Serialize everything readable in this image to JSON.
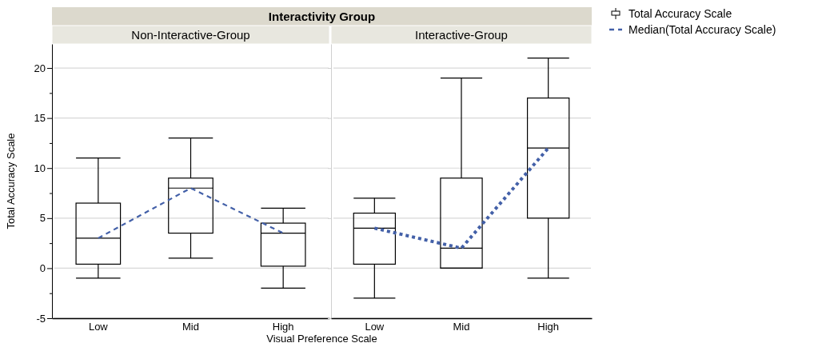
{
  "chart_data": [
    {
      "type": "box",
      "title": "Interactivity Group",
      "subtitle": "Non-Interactive-Group",
      "xlabel": "Visual Preference Scale",
      "ylabel": "Total Accuracy Scale",
      "categories": [
        "Low",
        "Mid",
        "High"
      ],
      "ylim": [
        -5,
        22.4
      ],
      "yticks": [
        -5,
        {
          "value": -2.5,
          "label": null
        },
        0,
        {
          "value": 2.5,
          "label": null
        },
        5,
        {
          "value": 7.5,
          "label": null
        },
        10,
        {
          "value": 12.5,
          "label": null
        },
        15,
        {
          "value": 17.5,
          "label": null
        },
        20
      ],
      "grid": "y",
      "legend": "top right",
      "marker": "none",
      "series": [
        {
          "name": "Total Accuracy Scale",
          "color": "#000000",
          "boxes": [
            {
              "low": -1,
              "q1": 0.4,
              "median": 3,
              "q3": 6.5,
              "high": 11
            },
            {
              "low": 1,
              "q1": 3.5,
              "median": 8,
              "q3": 9,
              "high": 13
            },
            {
              "low": -2,
              "q1": 0.2,
              "median": 3.5,
              "q3": 4.5,
              "high": 6
            }
          ]
        },
        {
          "name": "Median(Total Accuracy Scale)",
          "type": "line",
          "color": "#4360a8",
          "line_style": "dashed",
          "values": [
            3,
            8,
            3.5
          ]
        }
      ]
    },
    {
      "type": "box",
      "subtitle": "Interactive-Group",
      "categories": [
        "Low",
        "Mid",
        "High"
      ],
      "ylim": [
        -5,
        22.4
      ],
      "yticks": [
        -5,
        0,
        5,
        10,
        15,
        20
      ],
      "grid": "y",
      "tick_labels": "x",
      "marker": "none",
      "series": [
        {
          "color": "#000000",
          "boxes": [
            {
              "low": -3,
              "q1": 0.4,
              "median": 4,
              "q3": 5.5,
              "high": 7
            },
            {
              "low": 0,
              "q1": 0,
              "median": 2,
              "q3": 9,
              "high": 19
            },
            {
              "low": -1,
              "q1": 5,
              "median": 12,
              "q3": 17,
              "high": 21
            }
          ]
        },
        {
          "type": "line",
          "color": "#4360a8",
          "line_style": "dotted",
          "values": [
            4,
            2,
            12
          ]
        }
      ]
    }
  ]
}
